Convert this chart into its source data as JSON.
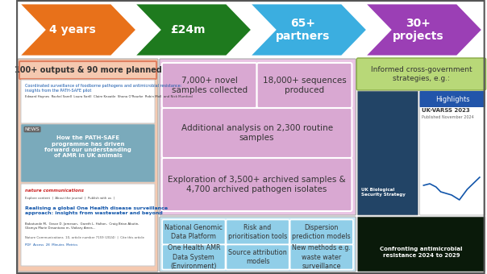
{
  "bg_color": "#ffffff",
  "border_color": "#555555",
  "arrow_items": [
    {
      "label": "4 years",
      "color": "#E8711A"
    },
    {
      "label": "£24m",
      "color": "#1E7A1E"
    },
    {
      "label": "65+\npartners",
      "color": "#3BAEE0"
    },
    {
      "label": "30+\nprojects",
      "color": "#9B3FB5"
    }
  ],
  "left_box_color": "#F5C9B0",
  "left_box_label": "100+ outputs & 90 more planned",
  "pink_bg_color": "#EAC4E4",
  "pink_inner_color": "#D9A8D2",
  "pink_items": [
    "7,000+ novel\nsamples collected",
    "18,000+ sequences\nproduced",
    "Additional analysis on 2,300 routine\nsamples",
    "Exploration of 3,500+ archived samples &\n4,700 archived pathogen isolates"
  ],
  "green_box_color": "#B8D878",
  "green_box_label": "Informed cross-government\nstrategies, e.g.:",
  "blue_bg_color": "#C8E8F5",
  "blue_box_color": "#90CEE8",
  "blue_items": [
    "National Genomic\nData Platform",
    "Risk and\nprioritisation tools",
    "Dispersion\nprediction models",
    "One Health AMR\nData System\n(Environment)",
    "Source attribution\nmodels",
    "New methods e.g.\nwaste water\nsurveillance"
  ],
  "img_left_bg": "#336688",
  "img_right_bg": "#ffffff",
  "img_bottom_bg": "#0A2A1A"
}
